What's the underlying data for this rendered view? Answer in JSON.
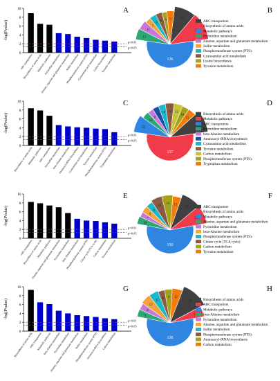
{
  "figure": {
    "panels": [
      {
        "bar_letter": "A",
        "pie_letter": "B",
        "bar": {
          "type": "bar",
          "ylabel": "-log(Pvalue)",
          "ylim": [
            0,
            10
          ],
          "yticks": [
            "0",
            "2",
            "4",
            "6",
            "8",
            "10"
          ],
          "categories": [
            "ABC transporters",
            "Biosynthesis of amino acids",
            "Metabolic pathways",
            "Pyrimidine metabolism",
            "Alanine, aspartate and glutamate metabolism",
            "Sulfur metabolism",
            "Phosphotransferase system (PTS)",
            "Cyanoamino acid metabolism",
            "Lysine biosynthesis",
            "Tyrosine metabolism"
          ],
          "values": [
            8.9,
            6.5,
            6.3,
            4.4,
            4.2,
            3.6,
            3.3,
            2.9,
            2.7,
            2.5
          ],
          "bar_colors": [
            "#000000",
            "#000000",
            "#000000",
            "#0000cc",
            "#0000cc",
            "#0000cc",
            "#0000cc",
            "#0000cc",
            "#0000cc",
            "#0000cc"
          ],
          "thresholds": [
            {
              "value": 2.0,
              "label": "p=0.01",
              "color": "#d62728"
            },
            {
              "value": 1.3,
              "label": "p=0.05",
              "color": "#1f3fff"
            }
          ]
        },
        "pie": {
          "type": "pie",
          "legend": [
            "ABC transporters",
            "Biosynthesis of amino acids",
            "Metabolic pathways",
            "Pyrimidine metabolism",
            "Alanine, aspartate and glutamate metabolism",
            "Sulfur metabolism",
            "Phosphotransferase system (PTS)",
            "Cyanoamino acid metabolism",
            "Lysine biosynthesis",
            "Tyrosine metabolism"
          ],
          "values": [
            23,
            29,
            136,
            13,
            11,
            7,
            8,
            8,
            6,
            9
          ],
          "colors": [
            "#404040",
            "#f03c4a",
            "#2f86e0",
            "#2ca870",
            "#c679d8",
            "#f2a33a",
            "#17b8c9",
            "#8b5a45",
            "#a6a11a",
            "#f27b0c"
          ]
        }
      },
      {
        "bar_letter": "C",
        "pie_letter": "D",
        "bar": {
          "type": "bar",
          "ylabel": "-log(Pvalue)",
          "ylim": [
            0,
            10
          ],
          "yticks": [
            "0",
            "2",
            "4",
            "6",
            "8",
            "10"
          ],
          "categories": [
            "Biosynthesis of amino acids",
            "Metabolic pathways",
            "ABC transporters",
            "Pyrimidine metabolism",
            "beta-Alanine metabolism",
            "Aminoacyl-tRNA biosynthesis",
            "Cyanoamino acid metabolism",
            "Tyrosine metabolism",
            "Phosphotransferase system (PTS)",
            "Tryptophan metabolism"
          ],
          "values": [
            8.4,
            7.9,
            6.7,
            4.6,
            4.3,
            4.1,
            4.0,
            3.8,
            3.7,
            3.0
          ],
          "bar_colors": [
            "#000000",
            "#000000",
            "#000000",
            "#0000cc",
            "#0000cc",
            "#0000cc",
            "#0000cc",
            "#0000cc",
            "#0000cc",
            "#0000cc"
          ],
          "thresholds": [
            {
              "value": 2.0,
              "label": "p=0.01",
              "color": "#d62728"
            },
            {
              "value": 1.3,
              "label": "p=0.05",
              "color": "#1f3fff"
            }
          ]
        },
        "pie": {
          "type": "pie",
          "legend": [
            "Biosynthesis of amino acids",
            "Metabolic pathways",
            "ABC transporters",
            "Pyrimidine metabolism",
            "beta-Alanine metabolism",
            "Aminoacyl-tRNA biosynthesis",
            "Cyanoamino acid metabolism",
            "Tyrosine metabolism",
            "Carbon metabolism",
            "Phosphotransferase system (PTS)",
            "Tryptophan metabolism"
          ],
          "values": [
            27,
            157,
            22,
            10,
            8,
            9,
            10,
            12,
            12,
            10,
            11
          ],
          "colors": [
            "#404040",
            "#f03c4a",
            "#2f86e0",
            "#2ca870",
            "#c679d8",
            "#1d4fa8",
            "#17b8c9",
            "#8b5a45",
            "#c6c23a",
            "#a6a11a",
            "#f27b0c"
          ]
        }
      },
      {
        "bar_letter": "E",
        "pie_letter": "F",
        "bar": {
          "type": "bar",
          "ylabel": "-log(Pvalue)",
          "ylim": [
            0,
            10
          ],
          "yticks": [
            "0",
            "2",
            "4",
            "6",
            "8",
            "10"
          ],
          "categories": [
            "ABC transporters",
            "Biosynthesis of amino acids",
            "Metabolic pathways",
            "Alanine, aspartate and glutamate metabolism",
            "Pyrimidine metabolism",
            "beta-Alanine metabolism",
            "Phosphotransferase system (PTS)",
            "Citrate cycle (TCA cycle)",
            "Carbon metabolism",
            "Tyrosine metabolism"
          ],
          "values": [
            8.2,
            7.9,
            7.4,
            7.0,
            5.7,
            4.4,
            4.0,
            3.9,
            3.6,
            3.3
          ],
          "bar_colors": [
            "#000000",
            "#000000",
            "#000000",
            "#000000",
            "#000000",
            "#0000cc",
            "#0000cc",
            "#0000cc",
            "#0000cc",
            "#0000cc"
          ],
          "thresholds": [
            {
              "value": 2.0,
              "label": "p=0.01",
              "color": "#d62728"
            },
            {
              "value": 1.3,
              "label": "p=0.05",
              "color": "#1f3fff"
            }
          ]
        },
        "pie": {
          "type": "pie",
          "legend": [
            "ABC transporters",
            "Biosynthesis of amino acids",
            "Metabolic pathways",
            "Alanine, aspartate and glutamate metabolism",
            "Pyrimidine metabolism",
            "beta-Alanine metabolism",
            "Phosphotransferase system (PTS)",
            "Citrate cycle (TCA cycle)",
            "Carbon metabolism",
            "Tyrosine metabolism"
          ],
          "values": [
            23,
            22,
            150,
            10,
            7,
            9,
            9,
            14,
            14,
            11
          ],
          "colors": [
            "#404040",
            "#f03c4a",
            "#2f86e0",
            "#2ca870",
            "#c679d8",
            "#f2a33a",
            "#17b8c9",
            "#8b5a45",
            "#a6a11a",
            "#f27b0c"
          ]
        }
      },
      {
        "bar_letter": "G",
        "pie_letter": "H",
        "bar": {
          "type": "bar",
          "ylabel": "-log(Pvalue)",
          "ylim": [
            0,
            10
          ],
          "yticks": [
            "0",
            "2",
            "4",
            "6",
            "8",
            "10"
          ],
          "categories": [
            "Biosynthesis of amino acids",
            "ABC transporters",
            "Metabolic pathways",
            "beta-Alanine metabolism",
            "Pyrimidine metabolism",
            "Alanine, aspartate and glutamate metabolism",
            "Sulfur metabolism",
            "Phosphotransferase system (PTS)",
            "Aminoacyl-tRNA biosynthesis",
            "Carbon metabolism"
          ],
          "values": [
            9.3,
            6.5,
            6.1,
            4.6,
            4.0,
            3.6,
            3.4,
            3.2,
            2.9,
            2.7
          ],
          "bar_colors": [
            "#000000",
            "#0000cc",
            "#0000cc",
            "#0000cc",
            "#0000cc",
            "#0000cc",
            "#0000cc",
            "#0000cc",
            "#0000cc",
            "#0000cc"
          ],
          "thresholds": [
            {
              "value": 2.0,
              "label": "p=0.01",
              "color": "#d62728"
            },
            {
              "value": 1.3,
              "label": "p=0.05",
              "color": "#1f3fff"
            }
          ]
        },
        "pie": {
          "type": "pie",
          "legend": [
            "Biosynthesis of amino acids",
            "ABC transporters",
            "Metabolic pathways",
            "beta-Alanine metabolism",
            "Pyrimidine metabolism",
            "Alanine, aspartate and glutamate metabolism",
            "Sulfur metabolism",
            "Phosphotransferase system (PTS)",
            "Aminoacyl-tRNA biosynthesis",
            "Carbon metabolism"
          ],
          "values": [
            28,
            12,
            138,
            9,
            8,
            12,
            11,
            8,
            9,
            12
          ],
          "colors": [
            "#404040",
            "#f03c4a",
            "#2f86e0",
            "#2ca870",
            "#c679d8",
            "#f2a33a",
            "#17b8c9",
            "#8b5a45",
            "#a6a11a",
            "#f27b0c"
          ]
        }
      }
    ]
  },
  "chart_data": [
    {
      "type": "bar",
      "panel": "A",
      "ylabel": "-log(Pvalue)",
      "ylim": [
        0,
        10
      ],
      "categories": [
        "ABC transporters",
        "Biosynthesis of amino acids",
        "Metabolic pathways",
        "Pyrimidine metabolism",
        "Alanine, aspartate and glutamate metabolism",
        "Sulfur metabolism",
        "Phosphotransferase system (PTS)",
        "Cyanoamino acid metabolism",
        "Lysine biosynthesis",
        "Tyrosine metabolism"
      ],
      "values": [
        8.9,
        6.5,
        6.3,
        4.4,
        4.2,
        3.6,
        3.3,
        2.9,
        2.7,
        2.5
      ]
    },
    {
      "type": "pie",
      "panel": "B",
      "categories": [
        "ABC transporters",
        "Biosynthesis of amino acids",
        "Metabolic pathways",
        "Pyrimidine metabolism",
        "Alanine, aspartate and glutamate metabolism",
        "Sulfur metabolism",
        "Phosphotransferase system (PTS)",
        "Cyanoamino acid metabolism",
        "Lysine biosynthesis",
        "Tyrosine metabolism"
      ],
      "values": [
        23,
        29,
        136,
        13,
        11,
        7,
        8,
        8,
        6,
        9
      ]
    },
    {
      "type": "bar",
      "panel": "C",
      "ylabel": "-log(Pvalue)",
      "ylim": [
        0,
        10
      ],
      "categories": [
        "Biosynthesis of amino acids",
        "Metabolic pathways",
        "ABC transporters",
        "Pyrimidine metabolism",
        "beta-Alanine metabolism",
        "Aminoacyl-tRNA biosynthesis",
        "Cyanoamino acid metabolism",
        "Tyrosine metabolism",
        "Phosphotransferase system (PTS)",
        "Tryptophan metabolism"
      ],
      "values": [
        8.4,
        7.9,
        6.7,
        4.6,
        4.3,
        4.1,
        4.0,
        3.8,
        3.7,
        3.0
      ]
    },
    {
      "type": "pie",
      "panel": "D",
      "categories": [
        "Biosynthesis of amino acids",
        "Metabolic pathways",
        "ABC transporters",
        "Pyrimidine metabolism",
        "beta-Alanine metabolism",
        "Aminoacyl-tRNA biosynthesis",
        "Cyanoamino acid metabolism",
        "Tyrosine metabolism",
        "Carbon metabolism",
        "Phosphotransferase system (PTS)",
        "Tryptophan metabolism"
      ],
      "values": [
        27,
        157,
        22,
        10,
        8,
        9,
        10,
        12,
        12,
        10,
        11
      ]
    },
    {
      "type": "bar",
      "panel": "E",
      "ylabel": "-log(Pvalue)",
      "ylim": [
        0,
        10
      ],
      "categories": [
        "ABC transporters",
        "Biosynthesis of amino acids",
        "Metabolic pathways",
        "Alanine, aspartate and glutamate metabolism",
        "Pyrimidine metabolism",
        "beta-Alanine metabolism",
        "Phosphotransferase system (PTS)",
        "Citrate cycle (TCA cycle)",
        "Carbon metabolism",
        "Tyrosine metabolism"
      ],
      "values": [
        8.2,
        7.9,
        7.4,
        7.0,
        5.7,
        4.4,
        4.0,
        3.9,
        3.6,
        3.3
      ]
    },
    {
      "type": "pie",
      "panel": "F",
      "categories": [
        "ABC transporters",
        "Biosynthesis of amino acids",
        "Metabolic pathways",
        "Alanine, aspartate and glutamate metabolism",
        "Pyrimidine metabolism",
        "beta-Alanine metabolism",
        "Phosphotransferase system (PTS)",
        "Citrate cycle (TCA cycle)",
        "Carbon metabolism",
        "Tyrosine metabolism"
      ],
      "values": [
        23,
        22,
        150,
        10,
        7,
        9,
        9,
        14,
        14,
        11
      ]
    },
    {
      "type": "bar",
      "panel": "G",
      "ylabel": "-log(Pvalue)",
      "ylim": [
        0,
        10
      ],
      "categories": [
        "Biosynthesis of amino acids",
        "ABC transporters",
        "Metabolic pathways",
        "beta-Alanine metabolism",
        "Pyrimidine metabolism",
        "Alanine, aspartate and glutamate metabolism",
        "Sulfur metabolism",
        "Phosphotransferase system (PTS)",
        "Aminoacyl-tRNA biosynthesis",
        "Carbon metabolism"
      ],
      "values": [
        9.3,
        6.5,
        6.1,
        4.6,
        4.0,
        3.6,
        3.4,
        3.2,
        2.9,
        2.7
      ]
    },
    {
      "type": "pie",
      "panel": "H",
      "categories": [
        "Biosynthesis of amino acids",
        "ABC transporters",
        "Metabolic pathways",
        "beta-Alanine metabolism",
        "Pyrimidine metabolism",
        "Alanine, aspartate and glutamate metabolism",
        "Sulfur metabolism",
        "Phosphotransferase system (PTS)",
        "Aminoacyl-tRNA biosynthesis",
        "Carbon metabolism"
      ],
      "values": [
        28,
        12,
        138,
        9,
        8,
        12,
        11,
        8,
        9,
        12
      ]
    }
  ]
}
